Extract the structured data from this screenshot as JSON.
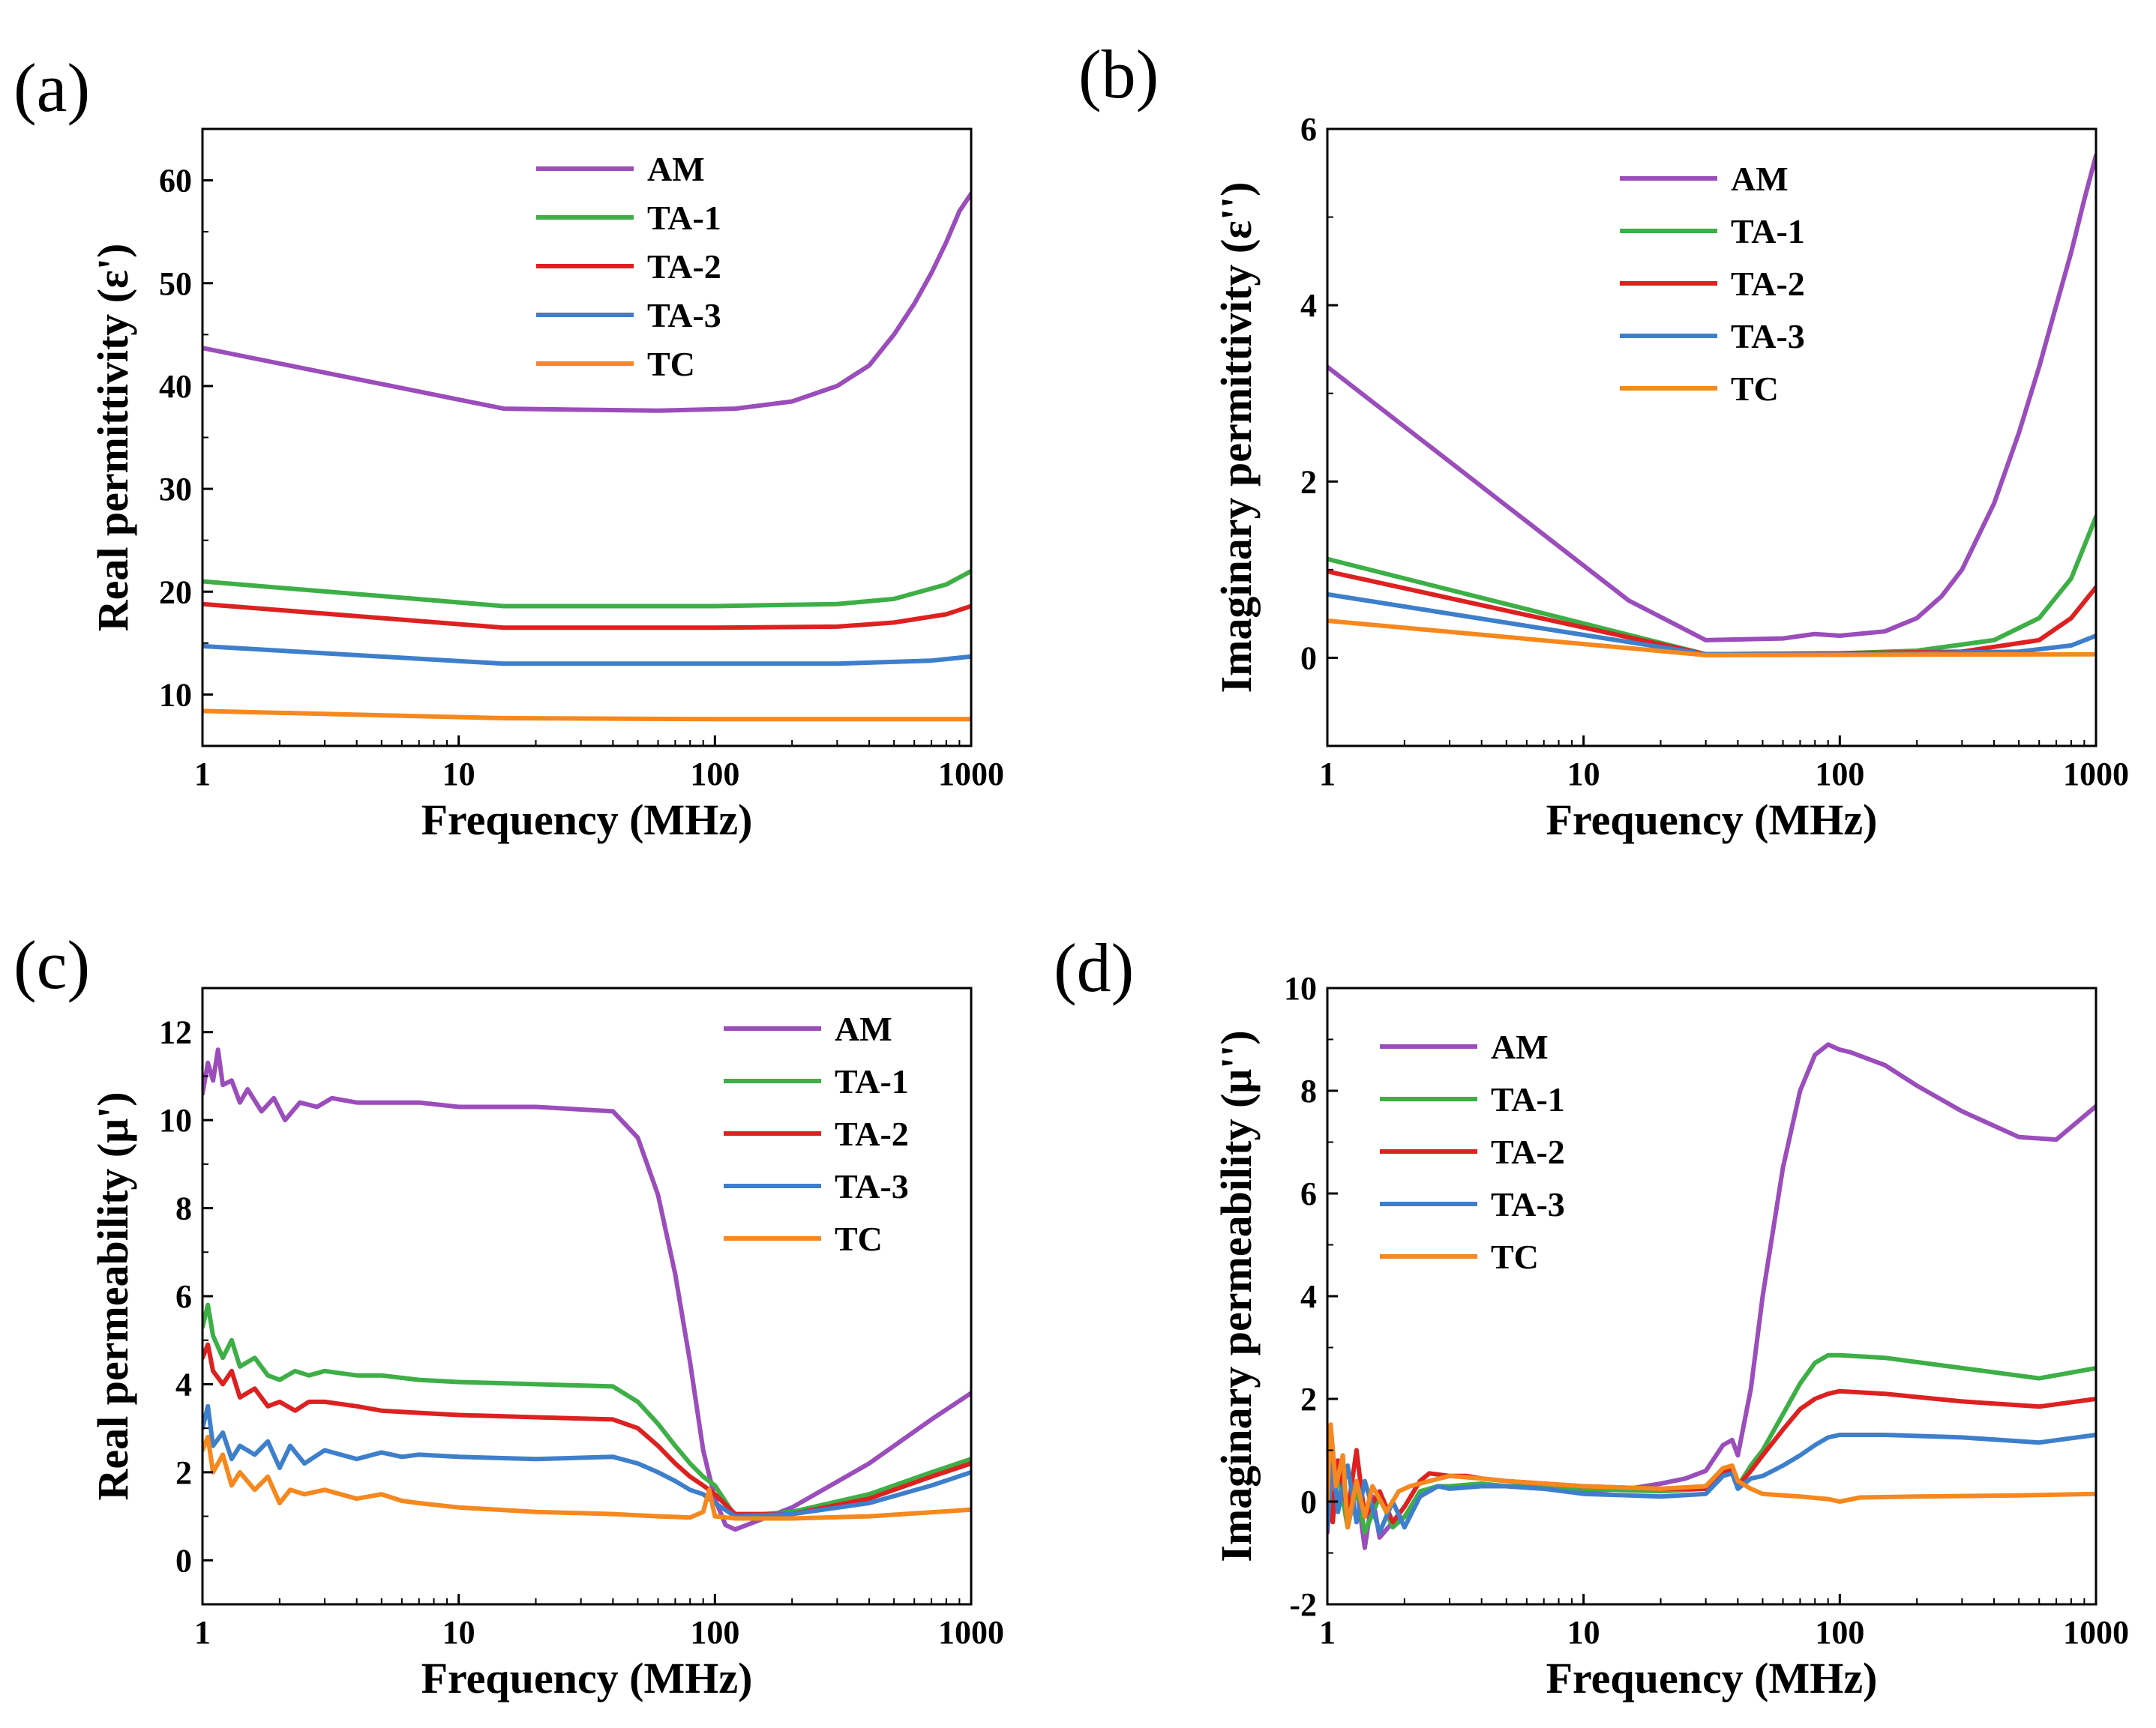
{
  "series_colors": {
    "AM": "#9b4dbb",
    "TA-1": "#3daf46",
    "TA-2": "#dd2121",
    "TA-3": "#3e7fcc",
    "TC": "#f5881e"
  },
  "chart_data": [
    {
      "panel": "(a)",
      "type": "line",
      "xscale": "log",
      "xlim": [
        1,
        1000
      ],
      "ylim": [
        5,
        65
      ],
      "xticks": [
        "1",
        "10",
        "100",
        "1000"
      ],
      "yticks": [
        "10",
        "20",
        "30",
        "40",
        "50",
        "60"
      ],
      "xlabel": "Frequency (MHz)",
      "ylabel": "Real permittivity (ε')",
      "legend_position": "top-center",
      "series": [
        {
          "name": "AM",
          "x": [
            1,
            15,
            30,
            60,
            120,
            200,
            300,
            400,
            500,
            600,
            700,
            800,
            900,
            1000
          ],
          "y": [
            43.7,
            37.8,
            37.7,
            37.6,
            37.8,
            38.5,
            40,
            42,
            45,
            48,
            51,
            54,
            57,
            58.7
          ]
        },
        {
          "name": "TA-1",
          "x": [
            1,
            15,
            50,
            100,
            300,
            500,
            800,
            1000
          ],
          "y": [
            21,
            18.6,
            18.6,
            18.6,
            18.8,
            19.3,
            20.7,
            22
          ]
        },
        {
          "name": "TA-2",
          "x": [
            1,
            15,
            50,
            100,
            300,
            500,
            800,
            1000
          ],
          "y": [
            18.8,
            16.5,
            16.5,
            16.5,
            16.6,
            17,
            17.8,
            18.6
          ]
        },
        {
          "name": "TA-3",
          "x": [
            1,
            15,
            50,
            100,
            300,
            700,
            1000
          ],
          "y": [
            14.7,
            13,
            13,
            13,
            13,
            13.3,
            13.7
          ]
        },
        {
          "name": "TC",
          "x": [
            1,
            15,
            100,
            1000
          ],
          "y": [
            8.4,
            7.7,
            7.6,
            7.6
          ]
        }
      ]
    },
    {
      "panel": "(b)",
      "type": "line",
      "xscale": "log",
      "xlim": [
        1,
        1000
      ],
      "ylim": [
        -1,
        6
      ],
      "xticks": [
        "1",
        "10",
        "100",
        "1000"
      ],
      "yticks": [
        "0",
        "2",
        "4",
        "6"
      ],
      "xlabel": "Frequency (MHz)",
      "ylabel": "Imaginary permittivity (ε'')",
      "legend_position": "top-center",
      "series": [
        {
          "name": "AM",
          "x": [
            1,
            15,
            30,
            60,
            80,
            100,
            150,
            200,
            250,
            300,
            400,
            500,
            600,
            700,
            800,
            900,
            1000
          ],
          "y": [
            3.3,
            0.65,
            0.2,
            0.22,
            0.27,
            0.25,
            0.3,
            0.45,
            0.7,
            1.0,
            1.75,
            2.55,
            3.3,
            4.0,
            4.6,
            5.2,
            5.7
          ]
        },
        {
          "name": "TA-1",
          "x": [
            1,
            30,
            100,
            200,
            400,
            600,
            800,
            1000
          ],
          "y": [
            1.12,
            0.04,
            0.05,
            0.08,
            0.2,
            0.45,
            0.9,
            1.6
          ]
        },
        {
          "name": "TA-2",
          "x": [
            1,
            30,
            100,
            300,
            600,
            800,
            1000
          ],
          "y": [
            0.98,
            0.04,
            0.05,
            0.07,
            0.2,
            0.45,
            0.8
          ]
        },
        {
          "name": "TA-3",
          "x": [
            1,
            30,
            100,
            500,
            800,
            1000
          ],
          "y": [
            0.72,
            0.04,
            0.04,
            0.07,
            0.14,
            0.25
          ]
        },
        {
          "name": "TC",
          "x": [
            1,
            30,
            1000
          ],
          "y": [
            0.42,
            0.03,
            0.04
          ]
        }
      ]
    },
    {
      "panel": "(c)",
      "type": "line",
      "xscale": "log",
      "xlim": [
        1,
        1000
      ],
      "ylim": [
        -1,
        13
      ],
      "xticks": [
        "1",
        "10",
        "100",
        "1000"
      ],
      "yticks": [
        "0",
        "2",
        "4",
        "6",
        "8",
        "10",
        "12"
      ],
      "xlabel": "Frequency (MHz)",
      "ylabel": "Real permeability (μ')",
      "legend_position": "top-right",
      "series": [
        {
          "name": "AM",
          "x": [
            1,
            1.05,
            1.1,
            1.15,
            1.2,
            1.3,
            1.4,
            1.5,
            1.7,
            1.9,
            2.1,
            2.4,
            2.8,
            3.2,
            4,
            5,
            7,
            10,
            20,
            40,
            50,
            60,
            70,
            80,
            90,
            100,
            110,
            120,
            200,
            400,
            700,
            1000
          ],
          "y": [
            10.6,
            11.3,
            10.9,
            11.6,
            10.8,
            10.9,
            10.4,
            10.7,
            10.2,
            10.5,
            10.0,
            10.4,
            10.3,
            10.5,
            10.4,
            10.4,
            10.4,
            10.3,
            10.3,
            10.2,
            9.6,
            8.3,
            6.5,
            4.5,
            2.5,
            1.4,
            0.8,
            0.7,
            1.2,
            2.2,
            3.2,
            3.8
          ]
        },
        {
          "name": "TA-1",
          "x": [
            1,
            1.05,
            1.1,
            1.2,
            1.3,
            1.4,
            1.6,
            1.8,
            2,
            2.3,
            2.6,
            3,
            4,
            5,
            7,
            10,
            20,
            40,
            50,
            60,
            70,
            80,
            90,
            100,
            120,
            200,
            400,
            700,
            1000
          ],
          "y": [
            5.3,
            5.8,
            5.1,
            4.6,
            5.0,
            4.4,
            4.6,
            4.2,
            4.1,
            4.3,
            4.2,
            4.3,
            4.2,
            4.2,
            4.1,
            4.05,
            4.0,
            3.95,
            3.6,
            3.1,
            2.6,
            2.2,
            1.9,
            1.7,
            1.0,
            1.1,
            1.5,
            2.0,
            2.3
          ]
        },
        {
          "name": "TA-2",
          "x": [
            1,
            1.05,
            1.1,
            1.2,
            1.3,
            1.4,
            1.6,
            1.8,
            2,
            2.3,
            2.6,
            3,
            4,
            5,
            7,
            10,
            20,
            40,
            50,
            60,
            70,
            80,
            90,
            100,
            120,
            200,
            400,
            700,
            1000
          ],
          "y": [
            4.6,
            4.9,
            4.3,
            4.0,
            4.3,
            3.7,
            3.9,
            3.5,
            3.6,
            3.4,
            3.6,
            3.6,
            3.5,
            3.4,
            3.35,
            3.3,
            3.25,
            3.2,
            3.0,
            2.6,
            2.2,
            1.9,
            1.7,
            1.5,
            1.05,
            1.05,
            1.4,
            1.9,
            2.2
          ]
        },
        {
          "name": "TA-3",
          "x": [
            1,
            1.05,
            1.1,
            1.2,
            1.3,
            1.4,
            1.6,
            1.8,
            2,
            2.2,
            2.5,
            3,
            4,
            5,
            6,
            7,
            10,
            20,
            40,
            50,
            60,
            70,
            80,
            90,
            100,
            120,
            200,
            400,
            700,
            1000
          ],
          "y": [
            3.0,
            3.5,
            2.6,
            2.9,
            2.3,
            2.6,
            2.4,
            2.7,
            2.1,
            2.6,
            2.2,
            2.5,
            2.3,
            2.45,
            2.35,
            2.4,
            2.35,
            2.3,
            2.35,
            2.2,
            2.0,
            1.8,
            1.6,
            1.5,
            1.3,
            1.0,
            1.05,
            1.3,
            1.7,
            2.0
          ]
        },
        {
          "name": "TC",
          "x": [
            1,
            1.05,
            1.1,
            1.2,
            1.3,
            1.4,
            1.6,
            1.8,
            2,
            2.2,
            2.5,
            3,
            4,
            5,
            6,
            7,
            10,
            20,
            40,
            60,
            80,
            90,
            95,
            100,
            120,
            200,
            400,
            1000
          ],
          "y": [
            2.5,
            2.8,
            2.0,
            2.4,
            1.7,
            2.0,
            1.6,
            1.9,
            1.3,
            1.6,
            1.5,
            1.6,
            1.4,
            1.5,
            1.35,
            1.3,
            1.2,
            1.1,
            1.05,
            1.0,
            0.97,
            1.1,
            1.6,
            1.0,
            0.95,
            0.95,
            1.0,
            1.15
          ]
        }
      ]
    },
    {
      "panel": "(d)",
      "type": "line",
      "xscale": "log",
      "xlim": [
        1,
        1000
      ],
      "ylim": [
        -2,
        10
      ],
      "xticks": [
        "1",
        "10",
        "100",
        "1000"
      ],
      "yticks": [
        "-2",
        "0",
        "2",
        "4",
        "6",
        "8",
        "10"
      ],
      "xlabel": "Frequency (MHz)",
      "ylabel": "Imaginary permeability (μ'')",
      "legend_position": "top-left",
      "series": [
        {
          "name": "AM",
          "x": [
            1,
            1.05,
            1.1,
            1.15,
            1.2,
            1.3,
            1.4,
            1.5,
            1.6,
            1.8,
            2,
            2.3,
            2.7,
            3.2,
            4,
            5,
            7,
            10,
            15,
            20,
            25,
            30,
            35,
            38,
            40,
            45,
            50,
            60,
            70,
            80,
            90,
            100,
            110,
            150,
            200,
            300,
            500,
            700,
            1000
          ],
          "y": [
            -0.6,
            0.8,
            -0.2,
            0.5,
            -0.5,
            0.3,
            -0.9,
            0.1,
            -0.7,
            -0.4,
            -0.3,
            0.1,
            0.3,
            0.3,
            0.3,
            0.3,
            0.25,
            0.2,
            0.25,
            0.35,
            0.45,
            0.6,
            1.1,
            1.2,
            0.9,
            2.2,
            4.0,
            6.5,
            8.0,
            8.7,
            8.9,
            8.8,
            8.75,
            8.5,
            8.1,
            7.6,
            7.1,
            7.05,
            7.7
          ]
        },
        {
          "name": "TA-1",
          "x": [
            1,
            1.05,
            1.1,
            1.2,
            1.3,
            1.4,
            1.6,
            1.8,
            2,
            2.3,
            2.7,
            3,
            4,
            5,
            7,
            10,
            20,
            30,
            35,
            38,
            40,
            45,
            50,
            60,
            70,
            80,
            90,
            100,
            150,
            300,
            600,
            1000
          ],
          "y": [
            0.9,
            -0.3,
            0.6,
            -0.5,
            0.3,
            -0.6,
            0.1,
            -0.5,
            -0.3,
            0.2,
            0.3,
            0.3,
            0.35,
            0.3,
            0.3,
            0.25,
            0.2,
            0.25,
            0.6,
            0.6,
            0.3,
            0.7,
            1.0,
            1.7,
            2.3,
            2.7,
            2.85,
            2.85,
            2.8,
            2.6,
            2.4,
            2.6
          ]
        },
        {
          "name": "TA-2",
          "x": [
            1,
            1.05,
            1.1,
            1.2,
            1.3,
            1.4,
            1.6,
            1.8,
            2,
            2.3,
            2.5,
            3,
            3.5,
            4,
            5,
            7,
            10,
            20,
            30,
            35,
            38,
            40,
            45,
            50,
            60,
            70,
            80,
            90,
            100,
            150,
            300,
            600,
            1000
          ],
          "y": [
            1.1,
            -0.4,
            0.8,
            -0.2,
            1.0,
            -0.3,
            0.2,
            -0.4,
            -0.1,
            0.4,
            0.55,
            0.5,
            0.5,
            0.45,
            0.4,
            0.35,
            0.3,
            0.25,
            0.25,
            0.6,
            0.6,
            0.3,
            0.6,
            0.9,
            1.4,
            1.8,
            2.0,
            2.1,
            2.15,
            2.1,
            1.95,
            1.85,
            2.0
          ]
        },
        {
          "name": "TA-3",
          "x": [
            1,
            1.05,
            1.1,
            1.2,
            1.3,
            1.4,
            1.6,
            1.8,
            2,
            2.3,
            2.7,
            3,
            4,
            5,
            7,
            10,
            20,
            30,
            35,
            38,
            40,
            45,
            50,
            60,
            70,
            80,
            90,
            100,
            150,
            300,
            600,
            1000
          ],
          "y": [
            -0.5,
            1.0,
            -0.2,
            0.7,
            -0.4,
            0.4,
            -0.6,
            0.0,
            -0.5,
            0.1,
            0.3,
            0.25,
            0.3,
            0.3,
            0.25,
            0.15,
            0.1,
            0.15,
            0.5,
            0.55,
            0.25,
            0.45,
            0.5,
            0.7,
            0.9,
            1.1,
            1.25,
            1.3,
            1.3,
            1.25,
            1.15,
            1.3
          ]
        },
        {
          "name": "TC",
          "x": [
            1,
            1.03,
            1.08,
            1.15,
            1.2,
            1.3,
            1.4,
            1.5,
            1.7,
            1.9,
            2.1,
            2.5,
            3,
            4,
            5,
            7,
            10,
            20,
            30,
            35,
            38,
            40,
            45,
            50,
            70,
            90,
            100,
            120,
            200,
            500,
            1000
          ],
          "y": [
            0.0,
            1.5,
            0.3,
            0.9,
            -0.5,
            0.4,
            -0.3,
            0.3,
            -0.2,
            0.2,
            0.3,
            0.4,
            0.5,
            0.45,
            0.4,
            0.35,
            0.3,
            0.25,
            0.3,
            0.65,
            0.7,
            0.4,
            0.25,
            0.15,
            0.1,
            0.05,
            0.0,
            0.08,
            0.1,
            0.12,
            0.15
          ]
        }
      ]
    }
  ]
}
